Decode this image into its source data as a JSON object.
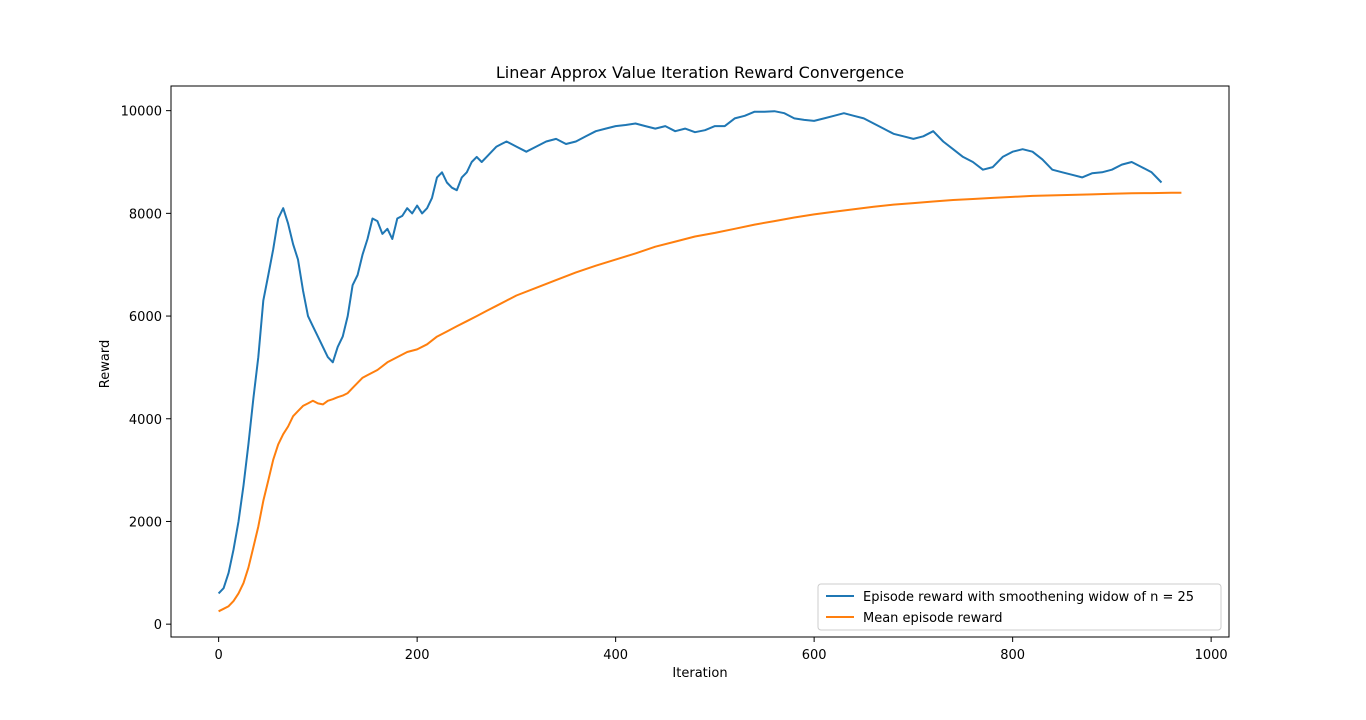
{
  "chart_data": {
    "type": "line",
    "title": "Linear Approx Value Iteration Reward Convergence",
    "xlabel": "Iteration",
    "ylabel": "Reward",
    "xlim": [
      -48,
      1018
    ],
    "ylim": [
      -250,
      10480
    ],
    "xticks": [
      0,
      200,
      400,
      600,
      800,
      1000
    ],
    "yticks": [
      0,
      2000,
      4000,
      6000,
      8000,
      10000
    ],
    "xtick_labels": [
      "0",
      "200",
      "400",
      "600",
      "800",
      "1000"
    ],
    "ytick_labels": [
      "0",
      "2000",
      "4000",
      "6000",
      "8000",
      "10000"
    ],
    "grid": false,
    "legend_position": "lower-right",
    "series": [
      {
        "name": "Episode reward with smoothening widow of n = 25",
        "color": "#1f77b4",
        "x": [
          0,
          5,
          10,
          15,
          20,
          25,
          30,
          35,
          40,
          45,
          50,
          55,
          60,
          65,
          70,
          75,
          80,
          85,
          90,
          95,
          100,
          105,
          110,
          115,
          120,
          125,
          130,
          135,
          140,
          145,
          150,
          155,
          160,
          165,
          170,
          175,
          180,
          185,
          190,
          195,
          200,
          205,
          210,
          215,
          220,
          225,
          230,
          235,
          240,
          245,
          250,
          255,
          260,
          265,
          270,
          275,
          280,
          285,
          290,
          295,
          300,
          310,
          320,
          330,
          340,
          350,
          360,
          370,
          380,
          390,
          400,
          410,
          420,
          430,
          440,
          450,
          460,
          470,
          480,
          490,
          500,
          510,
          520,
          530,
          540,
          550,
          560,
          570,
          580,
          590,
          600,
          610,
          620,
          630,
          640,
          650,
          660,
          670,
          680,
          690,
          700,
          710,
          720,
          730,
          740,
          750,
          760,
          770,
          780,
          790,
          800,
          810,
          820,
          830,
          840,
          850,
          860,
          870,
          880,
          890,
          900,
          910,
          920,
          930,
          940,
          950
        ],
        "values": [
          600,
          700,
          1000,
          1450,
          2000,
          2700,
          3500,
          4400,
          5200,
          6300,
          6800,
          7300,
          7900,
          8100,
          7800,
          7400,
          7100,
          6500,
          6000,
          5800,
          5600,
          5400,
          5200,
          5100,
          5400,
          5600,
          6000,
          6600,
          6800,
          7200,
          7500,
          7900,
          7850,
          7600,
          7700,
          7500,
          7900,
          7950,
          8100,
          8000,
          8150,
          8000,
          8100,
          8300,
          8700,
          8800,
          8600,
          8500,
          8450,
          8700,
          8800,
          9000,
          9100,
          9000,
          9100,
          9200,
          9300,
          9350,
          9400,
          9350,
          9300,
          9200,
          9300,
          9400,
          9450,
          9350,
          9400,
          9500,
          9600,
          9650,
          9700,
          9720,
          9750,
          9700,
          9650,
          9700,
          9600,
          9650,
          9580,
          9620,
          9700,
          9700,
          9850,
          9900,
          9980,
          9980,
          9990,
          9950,
          9850,
          9820,
          9800,
          9850,
          9900,
          9950,
          9900,
          9850,
          9750,
          9650,
          9550,
          9500,
          9450,
          9500,
          9600,
          9400,
          9250,
          9100,
          9000,
          8850,
          8900,
          9100,
          9200,
          9250,
          9200,
          9050,
          8850,
          8800,
          8750,
          8700,
          8780,
          8800,
          8850,
          8950,
          9000,
          8900,
          8800,
          8600
        ]
      },
      {
        "name": "Mean episode reward",
        "color": "#ff7f0e",
        "x": [
          0,
          5,
          10,
          15,
          20,
          25,
          30,
          35,
          40,
          45,
          50,
          55,
          60,
          65,
          70,
          75,
          80,
          85,
          90,
          95,
          100,
          105,
          110,
          115,
          120,
          125,
          130,
          135,
          140,
          145,
          150,
          160,
          170,
          180,
          190,
          200,
          210,
          220,
          230,
          240,
          250,
          260,
          270,
          280,
          290,
          300,
          320,
          340,
          360,
          380,
          400,
          420,
          440,
          460,
          480,
          500,
          520,
          540,
          560,
          580,
          600,
          620,
          640,
          660,
          680,
          700,
          720,
          740,
          760,
          780,
          800,
          820,
          840,
          860,
          880,
          900,
          920,
          940,
          960,
          970
        ],
        "values": [
          250,
          300,
          350,
          450,
          600,
          800,
          1100,
          1500,
          1900,
          2400,
          2800,
          3200,
          3500,
          3700,
          3850,
          4050,
          4150,
          4250,
          4300,
          4350,
          4300,
          4280,
          4350,
          4380,
          4420,
          4450,
          4500,
          4600,
          4700,
          4800,
          4850,
          4950,
          5100,
          5200,
          5300,
          5350,
          5450,
          5600,
          5700,
          5800,
          5900,
          6000,
          6100,
          6200,
          6300,
          6400,
          6550,
          6700,
          6850,
          6980,
          7100,
          7220,
          7350,
          7450,
          7550,
          7620,
          7700,
          7780,
          7850,
          7920,
          7980,
          8030,
          8080,
          8130,
          8170,
          8200,
          8230,
          8260,
          8280,
          8300,
          8320,
          8340,
          8350,
          8360,
          8370,
          8380,
          8390,
          8395,
          8400,
          8400
        ]
      }
    ]
  }
}
